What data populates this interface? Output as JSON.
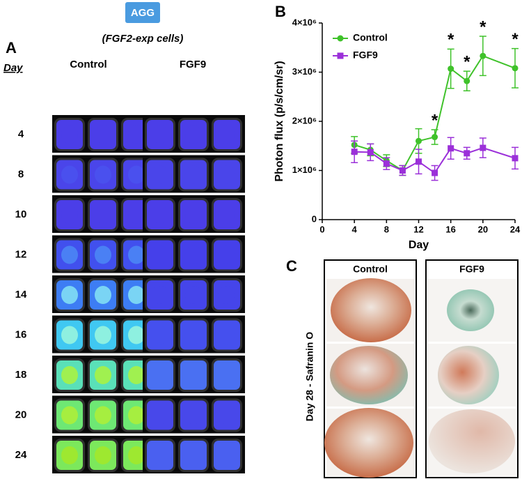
{
  "panel_a": {
    "label": "A",
    "badge": "AGG",
    "subtitle": "(FGF2-exp cells)",
    "day_header": "Day",
    "groups": [
      "Control",
      "FGF9"
    ],
    "days": [
      "4",
      "8",
      "10",
      "12",
      "14",
      "16",
      "18",
      "20",
      "24"
    ]
  },
  "chart_data": {
    "type": "line",
    "label": "B",
    "xlabel": "Day",
    "ylabel": "Photon flux (p/s/cm/sr)",
    "x": [
      4,
      6,
      8,
      10,
      12,
      14,
      16,
      18,
      20,
      24
    ],
    "series": [
      {
        "name": "Control",
        "color": "#3fc22a",
        "marker": "circle",
        "values": [
          1520000,
          1420000,
          1200000,
          1000000,
          1600000,
          1680000,
          3070000,
          2820000,
          3330000,
          3080000
        ],
        "errors": [
          170000,
          120000,
          120000,
          100000,
          250000,
          150000,
          400000,
          200000,
          400000,
          400000
        ]
      },
      {
        "name": "FGF9",
        "color": "#9b30d9",
        "marker": "square",
        "values": [
          1380000,
          1370000,
          1140000,
          1000000,
          1180000,
          950000,
          1450000,
          1350000,
          1460000,
          1250000
        ],
        "errors": [
          220000,
          170000,
          120000,
          100000,
          250000,
          150000,
          220000,
          120000,
          200000,
          220000
        ]
      }
    ],
    "annotations": [
      {
        "x": 14,
        "text": "*"
      },
      {
        "x": 16,
        "text": "*"
      },
      {
        "x": 18,
        "text": "*"
      },
      {
        "x": 20,
        "text": "*"
      },
      {
        "x": 24,
        "text": "*"
      }
    ],
    "xlim": [
      0,
      24
    ],
    "xticks": [
      0,
      4,
      8,
      12,
      16,
      20,
      24
    ],
    "ylim": [
      0,
      4000000
    ],
    "yticks": [
      0,
      {
        "value": 1000000,
        "label": "1×10⁶"
      },
      {
        "value": 2000000,
        "label": "2×10⁶"
      },
      {
        "value": 3000000,
        "label": "3×10⁶"
      },
      {
        "value": 4000000,
        "label": "4×10⁶"
      }
    ],
    "legend": "top-left"
  },
  "panel_c": {
    "label": "C",
    "groups": [
      "Control",
      "FGF9"
    ],
    "side_label": "Day 28 - Safranin O"
  }
}
